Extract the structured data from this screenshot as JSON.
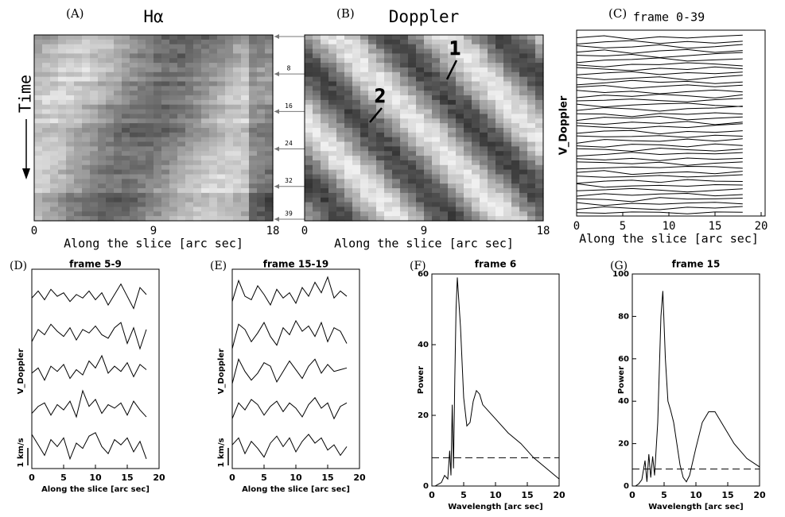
{
  "chart_data": [
    {
      "type": "image",
      "label": "(A)",
      "title": "Hα",
      "xlabel": "Along the slice [arc sec]",
      "ylabel": "Time",
      "xlim": [
        0,
        18
      ],
      "xticks": [
        0,
        9,
        18
      ],
      "y2lim": [
        0,
        39
      ],
      "y2ticks": [
        8,
        16,
        24,
        32,
        39
      ]
    },
    {
      "type": "image",
      "label": "(B)",
      "title": "Doppler",
      "xlabel": "Along the slice [arc sec]",
      "xlim": [
        0,
        18
      ],
      "xticks": [
        0,
        9,
        18
      ],
      "annotations": [
        "1",
        "2"
      ]
    },
    {
      "type": "ridgeline",
      "label": "(C)",
      "title": "frame 0-39",
      "xlabel": "Along the slice [arc sec]",
      "ylabel": "V_Doppler",
      "xlim": [
        0,
        20
      ],
      "xticks": [
        0,
        5,
        10,
        15,
        20
      ],
      "color": "#000000",
      "x": [
        0,
        3,
        6,
        9,
        12,
        15,
        18
      ],
      "series": [
        {
          "values": [
            0.2,
            0.8,
            -0.3,
            0.5,
            0.1,
            0.6,
            1.0
          ]
        },
        {
          "values": [
            -0.4,
            0.3,
            0.7,
            -0.2,
            0.4,
            -0.1,
            0.5
          ]
        },
        {
          "values": [
            0.5,
            -0.2,
            0.1,
            0.8,
            -0.3,
            0.2,
            0.9
          ]
        },
        {
          "values": [
            -0.1,
            0.6,
            -0.5,
            0.3,
            0.7,
            -0.2,
            0.4
          ]
        },
        {
          "values": [
            0.3,
            0.1,
            0.6,
            -0.4,
            0.2,
            0.8,
            1.2
          ]
        },
        {
          "values": [
            -0.6,
            0.2,
            0.4,
            0.9,
            -0.1,
            0.3,
            0.6
          ]
        },
        {
          "values": [
            0.1,
            -0.5,
            0.3,
            0.2,
            0.8,
            0.4,
            -0.2
          ]
        },
        {
          "values": [
            0.7,
            0.2,
            -0.3,
            0.5,
            0.1,
            0.9,
            0.3
          ]
        },
        {
          "values": [
            -0.2,
            0.4,
            0.8,
            -0.1,
            0.5,
            0.2,
            0.7
          ]
        },
        {
          "values": [
            0.4,
            -0.3,
            0.2,
            0.6,
            -0.4,
            0.5,
            1.1
          ]
        },
        {
          "values": [
            -0.5,
            0.1,
            0.9,
            0.3,
            0.6,
            -0.1,
            0.4
          ]
        },
        {
          "values": [
            0.2,
            0.7,
            -0.2,
            0.4,
            0.9,
            0.3,
            0.8
          ]
        },
        {
          "values": [
            0.6,
            -0.1,
            0.3,
            -0.5,
            0.2,
            0.7,
            0.1
          ]
        },
        {
          "values": [
            -0.3,
            0.5,
            0.1,
            0.8,
            0.3,
            -0.4,
            0.6
          ]
        },
        {
          "values": [
            0.1,
            0.3,
            0.7,
            0.2,
            -0.2,
            0.5,
            0.9
          ]
        },
        {
          "values": [
            0.5,
            -0.4,
            0.2,
            0.6,
            0.8,
            0.1,
            -0.3
          ]
        },
        {
          "values": [
            -0.1,
            0.8,
            0.4,
            -0.3,
            0.5,
            0.7,
            1.3
          ]
        },
        {
          "values": [
            0.3,
            0.2,
            -0.6,
            0.4,
            0.1,
            0.6,
            0.2
          ]
        },
        {
          "values": [
            -0.4,
            0.6,
            0.3,
            0.9,
            -0.2,
            0.3,
            0.7
          ]
        },
        {
          "values": [
            0.2,
            -0.2,
            0.5,
            0.1,
            0.7,
            -0.3,
            0.5
          ]
        },
        {
          "values": [
            0.8,
            0.3,
            -0.1,
            0.6,
            0.2,
            0.9,
            1.4
          ]
        },
        {
          "values": [
            -0.2,
            0.5,
            0.7,
            -0.4,
            0.4,
            0.1,
            0.6
          ]
        },
        {
          "values": [
            0.4,
            0.1,
            0.2,
            0.5,
            -0.1,
            0.6,
            0.3
          ]
        },
        {
          "values": [
            -0.5,
            0.7,
            0.3,
            0.1,
            0.8,
            0.2,
            0.9
          ]
        },
        {
          "values": [
            0.1,
            -0.3,
            0.6,
            0.4,
            -0.2,
            0.7,
            0.2
          ]
        },
        {
          "values": [
            0.6,
            0.4,
            -0.2,
            0.8,
            0.3,
            -0.1,
            0.5
          ]
        },
        {
          "values": [
            -0.3,
            0.2,
            0.9,
            0.2,
            0.6,
            0.4,
            0.8
          ]
        },
        {
          "values": [
            0.3,
            -0.1,
            0.4,
            -0.3,
            0.5,
            0.1,
            0.4
          ]
        },
        {
          "values": [
            0.7,
            0.5,
            0.1,
            0.6,
            -0.4,
            0.3,
            0.7
          ]
        },
        {
          "values": [
            -0.1,
            0.2,
            0.5,
            0.3,
            0.7,
            0.6,
            0.1
          ]
        },
        {
          "values": [
            0.2,
            0.8,
            -0.4,
            0.1,
            0.4,
            -0.2,
            0.6
          ]
        },
        {
          "values": [
            0.5,
            0.1,
            0.3,
            0.7,
            0.2,
            0.5,
            0.9
          ]
        },
        {
          "values": [
            -0.4,
            0.3,
            0.6,
            -0.1,
            0.8,
            0.3,
            0.2
          ]
        },
        {
          "values": [
            0.9,
            -0.2,
            0.2,
            0.4,
            0.1,
            0.6,
            0.5
          ]
        },
        {
          "values": [
            0.1,
            0.4,
            0.8,
            0.3,
            -0.3,
            0.2,
            0.7
          ]
        },
        {
          "values": [
            -0.2,
            0.6,
            0.1,
            0.5,
            0.7,
            -0.1,
            0.3
          ]
        },
        {
          "values": [
            0.4,
            0.2,
            -0.5,
            0.8,
            0.3,
            0.4,
            0.6
          ]
        },
        {
          "values": [
            0.6,
            -0.3,
            0.4,
            0.1,
            0.5,
            0.7,
            0.2
          ]
        },
        {
          "values": [
            -0.1,
            0.7,
            0.2,
            -0.2,
            0.6,
            0.3,
            0.8
          ]
        },
        {
          "values": [
            0.3,
            0.1,
            0.5,
            0.4,
            -0.1,
            0.5,
            0.4
          ]
        }
      ]
    },
    {
      "type": "ridgeline",
      "label": "(D)",
      "title": "frame 5-9",
      "xlabel": "Along the slice [arc sec]",
      "ylabel": "V_Doppler",
      "scale_label": "1 km/s",
      "scale_value": 1,
      "xlim": [
        0,
        20
      ],
      "xticks": [
        0,
        5,
        10,
        15,
        20
      ],
      "color": "#000000",
      "x": [
        0,
        1,
        2,
        3,
        4,
        5,
        6,
        7,
        8,
        9,
        10,
        11,
        12,
        13,
        14,
        15,
        16,
        17,
        18
      ],
      "series": [
        {
          "values": [
            0.2,
            0.6,
            0.1,
            0.7,
            0.3,
            0.5,
            0.0,
            0.4,
            0.2,
            0.6,
            0.1,
            0.5,
            -0.2,
            0.4,
            1.0,
            0.3,
            -0.4,
            0.8,
            0.4
          ]
        },
        {
          "values": [
            -0.2,
            0.5,
            0.2,
            0.8,
            0.4,
            0.1,
            0.6,
            -0.1,
            0.5,
            0.3,
            0.7,
            0.2,
            0.0,
            0.6,
            0.9,
            -0.3,
            0.6,
            -0.6,
            0.5
          ]
        },
        {
          "values": [
            0.1,
            0.4,
            -0.3,
            0.5,
            0.2,
            0.6,
            -0.2,
            0.3,
            0.0,
            0.8,
            0.4,
            1.1,
            0.1,
            0.5,
            0.2,
            0.7,
            -0.1,
            0.6,
            0.3
          ]
        },
        {
          "values": [
            -0.1,
            0.3,
            0.5,
            -0.2,
            0.4,
            0.1,
            0.6,
            -0.3,
            1.2,
            0.3,
            0.7,
            -0.1,
            0.4,
            0.2,
            0.5,
            -0.2,
            0.6,
            0.1,
            -0.3
          ]
        },
        {
          "values": [
            0.8,
            0.2,
            -0.4,
            0.5,
            0.1,
            0.6,
            -0.6,
            0.3,
            0.0,
            0.7,
            0.9,
            0.1,
            -0.3,
            0.5,
            0.2,
            0.6,
            -0.2,
            0.4,
            -0.6
          ]
        }
      ]
    },
    {
      "type": "ridgeline",
      "label": "(E)",
      "title": "frame 15-19",
      "xlabel": "Along the slice [arc sec]",
      "ylabel": "V_Doppler",
      "scale_label": "1 km/s",
      "scale_value": 1,
      "xlim": [
        0,
        20
      ],
      "xticks": [
        0,
        5,
        10,
        15,
        20
      ],
      "color": "#000000",
      "x": [
        0,
        1,
        2,
        3,
        4,
        5,
        6,
        7,
        8,
        9,
        10,
        11,
        12,
        13,
        14,
        15,
        16,
        17,
        18
      ],
      "series": [
        {
          "values": [
            0.0,
            1.2,
            0.3,
            0.1,
            0.9,
            0.4,
            -0.2,
            0.7,
            0.2,
            0.5,
            -0.1,
            0.8,
            0.3,
            1.1,
            0.5,
            1.4,
            0.2,
            0.6,
            0.3
          ]
        },
        {
          "values": [
            -0.6,
            0.8,
            0.5,
            -0.2,
            0.3,
            0.9,
            0.1,
            -0.4,
            0.6,
            0.2,
            1.0,
            0.4,
            0.7,
            0.1,
            0.9,
            -0.2,
            0.6,
            0.4,
            -0.3
          ]
        },
        {
          "values": [
            -0.5,
            0.9,
            0.2,
            -0.3,
            0.1,
            0.7,
            0.5,
            -0.4,
            0.2,
            0.8,
            0.3,
            -0.2,
            0.5,
            0.9,
            0.1,
            0.6,
            0.2,
            0.3,
            0.4
          ]
        },
        {
          "values": [
            -0.4,
            0.5,
            0.1,
            0.7,
            0.4,
            -0.2,
            0.3,
            0.6,
            0.0,
            0.5,
            0.2,
            -0.3,
            0.4,
            0.8,
            0.2,
            0.5,
            -0.4,
            0.3,
            0.5
          ]
        },
        {
          "values": [
            0.2,
            0.6,
            -0.3,
            0.4,
            0.0,
            -0.5,
            0.3,
            0.7,
            0.1,
            0.6,
            -0.2,
            0.4,
            0.8,
            0.3,
            0.6,
            -0.1,
            0.2,
            -0.4,
            0.1
          ]
        }
      ]
    },
    {
      "type": "line",
      "label": "(F)",
      "title": "frame 6",
      "xlabel": "Wavelength [arc sec]",
      "ylabel": "Power",
      "xlim": [
        0,
        20
      ],
      "xticks": [
        0,
        5,
        10,
        15,
        20
      ],
      "ylim": [
        0,
        60
      ],
      "yticks": [
        0,
        20,
        40,
        60
      ],
      "threshold": 8,
      "color": "#000000",
      "x": [
        0.5,
        1,
        1.5,
        2,
        2.5,
        2.8,
        3,
        3.2,
        3.4,
        3.6,
        3.8,
        4,
        4.5,
        5,
        5.5,
        6,
        6.5,
        7,
        7.5,
        8,
        9,
        10,
        12,
        14,
        16,
        18,
        20
      ],
      "values": [
        0,
        0.5,
        1,
        3,
        2,
        10,
        3,
        23,
        5,
        30,
        50,
        59,
        45,
        25,
        17,
        18,
        24,
        27,
        26,
        23,
        21,
        19,
        15,
        12,
        8,
        5,
        2
      ]
    },
    {
      "type": "line",
      "label": "(G)",
      "title": "frame 15",
      "xlabel": "Wavelength [arc sec]",
      "ylabel": "Power",
      "xlim": [
        0,
        20
      ],
      "xticks": [
        0,
        5,
        10,
        15,
        20
      ],
      "ylim": [
        0,
        100
      ],
      "yticks": [
        0,
        20,
        40,
        60,
        80,
        100
      ],
      "threshold": 8,
      "color": "#000000",
      "x": [
        0.5,
        1,
        1.5,
        2,
        2.3,
        2.6,
        2.9,
        3.2,
        3.5,
        4,
        4.5,
        4.8,
        5.2,
        5.6,
        6,
        6.5,
        7,
        7.5,
        8,
        8.5,
        9,
        10,
        11,
        12,
        13,
        14,
        16,
        18,
        20
      ],
      "values": [
        0,
        1,
        3,
        12,
        2,
        15,
        4,
        14,
        5,
        30,
        80,
        92,
        60,
        40,
        36,
        30,
        20,
        10,
        4,
        2,
        5,
        18,
        30,
        35,
        35,
        30,
        20,
        13,
        9
      ]
    }
  ]
}
